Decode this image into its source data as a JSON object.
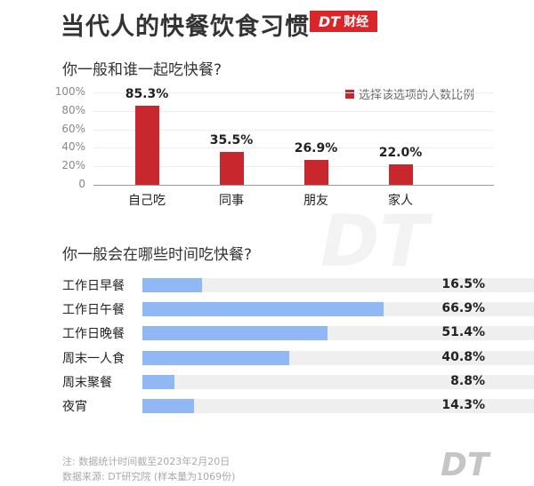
{
  "title": "当代人的快餐饮食习惯",
  "brand": {
    "dt": "DT",
    "name": "财经",
    "color": "#d9262b"
  },
  "watermark": "DT",
  "chart_data": [
    {
      "type": "bar",
      "title": "你一般和谁一起吃快餐?",
      "categories": [
        "自己吃",
        "同事",
        "朋友",
        "家人"
      ],
      "series": [
        {
          "name": "选择该选项的人数比例",
          "values": [
            85.3,
            35.5,
            26.9,
            22.0
          ],
          "color": "#c8282d"
        }
      ],
      "value_labels": [
        "85.3%",
        "35.5%",
        "26.9%",
        "22.0%"
      ],
      "yticks": [
        "0",
        "20%",
        "40%",
        "60%",
        "80%",
        "100%"
      ],
      "ylim": [
        0,
        100
      ],
      "grid": true,
      "legend": "top-right"
    },
    {
      "type": "bar",
      "orientation": "horizontal",
      "title": "你一般会在哪些时间吃快餐?",
      "categories": [
        "工作日早餐",
        "工作日午餐",
        "工作日晚餐",
        "周末一人食",
        "周末聚餐",
        "夜宵"
      ],
      "values": [
        16.5,
        66.9,
        51.4,
        40.8,
        8.8,
        14.3
      ],
      "value_labels": [
        "16.5%",
        "66.9%",
        "51.4%",
        "40.8%",
        "8.8%",
        "14.3%"
      ],
      "color": "#8fb8f4",
      "track_color": "#efefef"
    }
  ],
  "footer": {
    "note": "注: 数据统计时间截至2023年2月20日",
    "source": "数据来源: DT研究院 (样本量为1069份)",
    "logo": "DT"
  }
}
